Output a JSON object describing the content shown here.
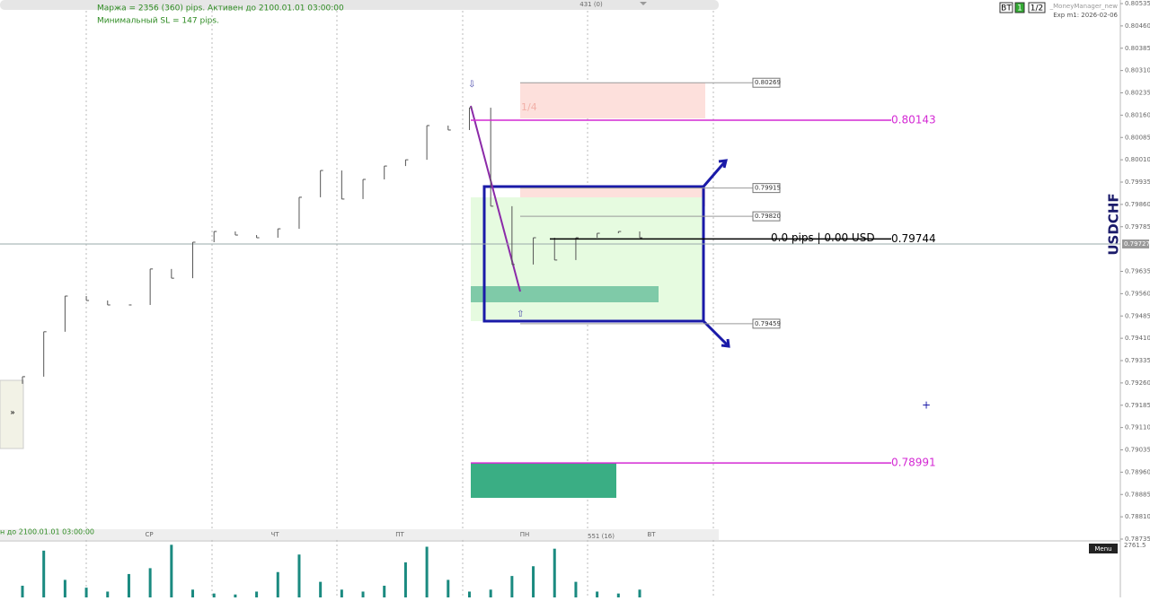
{
  "header": {
    "margin": "Маржа = 2356 (360) pips. Активен до 2100.01.01 03:00:00",
    "min_sl": "Минимальный SL = 147 pips.",
    "tab_count": "431 (0)",
    "expert_name": "_MoneyManager_new",
    "expiry": "Exp m1: 2026-02-06",
    "buttons": [
      "BT",
      "1",
      "1/2"
    ]
  },
  "symbol": "USDCHF",
  "footer": {
    "active": "н до 2100.01.01 03:00:00",
    "days": [
      "СР",
      "ЧТ",
      "ПТ",
      "ПН",
      "ВТ"
    ],
    "tab_count": "551 (16)",
    "menu": "Menu",
    "expand": "»"
  },
  "zone_label": "1/4",
  "position_text": "0.0 pips | 0.00 USD",
  "chart_data": {
    "type": "bar-chart",
    "ylim": [
      0.78735,
      0.80535
    ],
    "yticks": [
      {
        "value": 0.80535,
        "label": "0.80535"
      },
      {
        "value": 0.8046,
        "label": "0.80460"
      },
      {
        "value": 0.80385,
        "label": "0.80385"
      },
      {
        "value": 0.8031,
        "label": "0.80310"
      },
      {
        "value": 0.80235,
        "label": "0.80235"
      },
      {
        "value": 0.8016,
        "label": "0.80160"
      },
      {
        "value": 0.80085,
        "label": "0.80085"
      },
      {
        "value": 0.8001,
        "label": "0.80010"
      },
      {
        "value": 0.79935,
        "label": "0.79935"
      },
      {
        "value": 0.7986,
        "label": "0.79860"
      },
      {
        "value": 0.79785,
        "label": "0.79785"
      },
      {
        "value": 0.79635,
        "label": "0.79635"
      },
      {
        "value": 0.7956,
        "label": "0.79560"
      },
      {
        "value": 0.79485,
        "label": "0.79485"
      },
      {
        "value": 0.7941,
        "label": "0.79410"
      },
      {
        "value": 0.79335,
        "label": "0.79335"
      },
      {
        "value": 0.7926,
        "label": "0.79260"
      },
      {
        "value": 0.79185,
        "label": "0.79185"
      },
      {
        "value": 0.7911,
        "label": "0.79110"
      },
      {
        "value": 0.79035,
        "label": "0.79035"
      },
      {
        "value": 0.7896,
        "label": "0.78960"
      },
      {
        "value": 0.78885,
        "label": "0.78885"
      },
      {
        "value": 0.7881,
        "label": "0.78810"
      },
      {
        "value": 0.78735,
        "label": "0.78735"
      }
    ],
    "current_price": 0.79727,
    "values": [
      0.79281,
      0.79432,
      0.79552,
      0.79537,
      0.79522,
      0.79522,
      0.79643,
      0.79612,
      0.79733,
      0.79769,
      0.79757,
      0.79748,
      0.79778,
      0.79884,
      0.79974,
      0.79878,
      0.79944,
      0.79989,
      0.8001,
      0.80125,
      0.8011,
      0.80185,
      0.79854,
      0.79658,
      0.79748,
      0.79673,
      0.79748,
      0.79763,
      0.79769,
      0.79748
    ],
    "levels": [
      0.80269,
      0.79915,
      {
        "value": 0.7982,
        "label": "0.79820"
      },
      0.79459
    ],
    "lines": [
      0.80143,
      0.79744,
      0.78991
    ],
    "volume": {
      "ylim": [
        0,
        2761.5
      ],
      "values": [
        600,
        2400,
        900,
        500,
        300,
        1200,
        1500,
        2700,
        400,
        200,
        150,
        300,
        1300,
        2200,
        800,
        400,
        300,
        600,
        1800,
        2600,
        900,
        300,
        400,
        1100,
        1600,
        2500,
        800,
        300,
        200,
        400
      ]
    }
  }
}
